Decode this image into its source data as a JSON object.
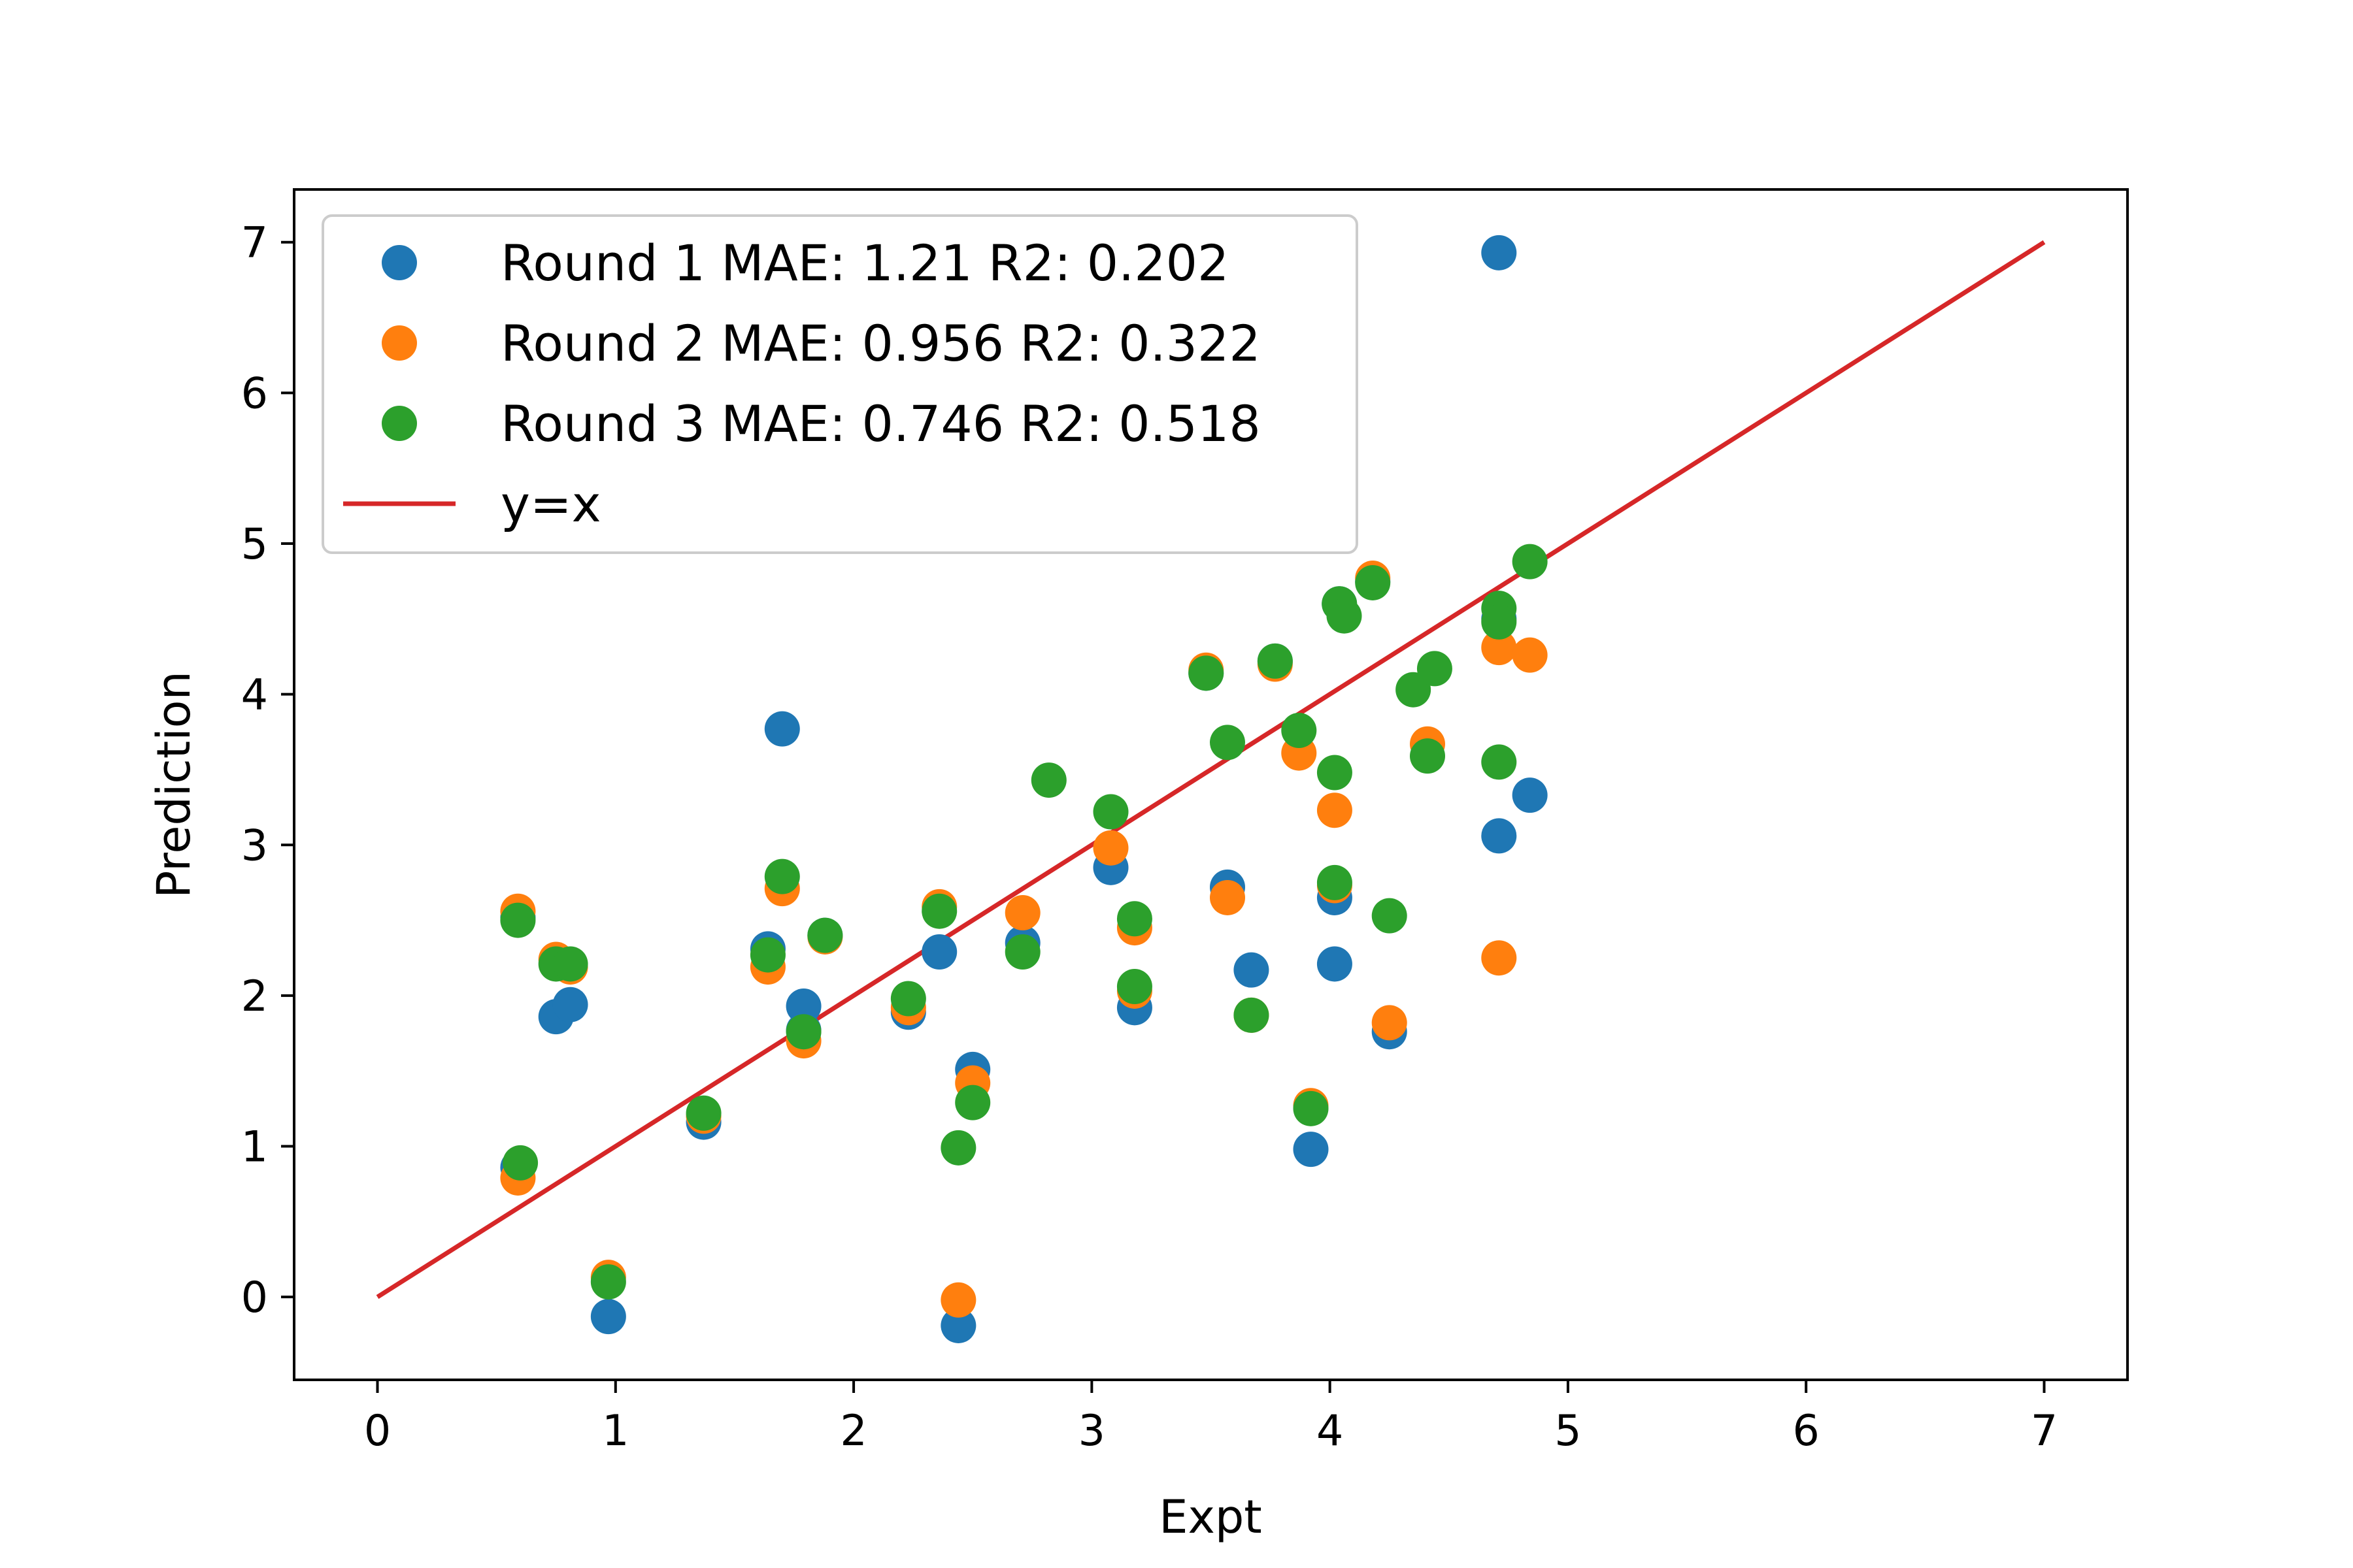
{
  "chart_data": {
    "type": "scatter",
    "title": "",
    "xlabel": "Expt",
    "ylabel": "Prediction",
    "xlim": [
      -0.35,
      7.35
    ],
    "ylim": [
      -0.55,
      7.35
    ],
    "xticks": [
      0,
      1,
      2,
      3,
      4,
      5,
      6,
      7
    ],
    "yticks": [
      0,
      1,
      2,
      3,
      4,
      5,
      6,
      7
    ],
    "grid": false,
    "legend_position": "upper left",
    "series": [
      {
        "name": "Round 1 MAE: 1.21 R2: 0.202",
        "color": "#1f77b4",
        "points": [
          [
            0.59,
            2.52
          ],
          [
            0.59,
            0.86
          ],
          [
            0.75,
            1.86
          ],
          [
            0.81,
            1.94
          ],
          [
            0.97,
            -0.13
          ],
          [
            1.37,
            1.16
          ],
          [
            1.64,
            2.31
          ],
          [
            1.7,
            3.77
          ],
          [
            1.79,
            1.93
          ],
          [
            1.88,
            2.4
          ],
          [
            2.23,
            1.89
          ],
          [
            2.36,
            2.29
          ],
          [
            2.44,
            -0.19
          ],
          [
            2.5,
            1.51
          ],
          [
            2.71,
            2.35
          ],
          [
            3.08,
            2.85
          ],
          [
            3.18,
            1.92
          ],
          [
            3.57,
            2.72
          ],
          [
            3.67,
            2.17
          ],
          [
            3.92,
            0.98
          ],
          [
            4.02,
            2.65
          ],
          [
            4.02,
            2.21
          ],
          [
            4.25,
            1.76
          ],
          [
            4.71,
            6.93
          ],
          [
            4.71,
            3.06
          ],
          [
            4.84,
            3.33
          ],
          [
            1.79,
            1.77
          ],
          [
            3.48,
            4.14
          ],
          [
            3.77,
            4.22
          ],
          [
            4.18,
            4.75
          ],
          [
            4.04,
            4.6
          ],
          [
            4.71,
            4.5
          ]
        ]
      },
      {
        "name": "Round 2 MAE: 0.956 R2: 0.322",
        "color": "#ff7f0e",
        "points": [
          [
            0.59,
            2.56
          ],
          [
            0.59,
            0.79
          ],
          [
            0.75,
            2.24
          ],
          [
            0.81,
            2.19
          ],
          [
            0.97,
            0.13
          ],
          [
            1.37,
            1.2
          ],
          [
            1.64,
            2.19
          ],
          [
            1.7,
            2.71
          ],
          [
            1.79,
            1.7
          ],
          [
            1.88,
            2.39
          ],
          [
            2.23,
            1.92
          ],
          [
            2.36,
            2.59
          ],
          [
            2.44,
            -0.02
          ],
          [
            2.5,
            1.42
          ],
          [
            2.71,
            2.55
          ],
          [
            3.08,
            2.98
          ],
          [
            3.18,
            2.45
          ],
          [
            3.18,
            2.03
          ],
          [
            3.48,
            4.16
          ],
          [
            3.57,
            2.65
          ],
          [
            3.67,
            1.87
          ],
          [
            3.77,
            4.2
          ],
          [
            3.87,
            3.61
          ],
          [
            3.92,
            1.27
          ],
          [
            4.02,
            3.23
          ],
          [
            4.02,
            2.73
          ],
          [
            4.18,
            4.77
          ],
          [
            4.25,
            1.82
          ],
          [
            4.41,
            3.67
          ],
          [
            4.71,
            4.31
          ],
          [
            4.71,
            2.25
          ],
          [
            4.84,
            4.26
          ]
        ]
      },
      {
        "name": "Round 3 MAE: 0.746 R2: 0.518",
        "color": "#2ca02c",
        "points": [
          [
            0.59,
            2.5
          ],
          [
            0.6,
            0.89
          ],
          [
            0.75,
            2.21
          ],
          [
            0.81,
            2.21
          ],
          [
            0.97,
            0.1
          ],
          [
            1.37,
            1.22
          ],
          [
            1.64,
            2.27
          ],
          [
            1.7,
            2.79
          ],
          [
            1.79,
            1.76
          ],
          [
            1.88,
            2.4
          ],
          [
            2.23,
            1.98
          ],
          [
            2.36,
            2.56
          ],
          [
            2.44,
            0.99
          ],
          [
            2.5,
            1.29
          ],
          [
            2.71,
            2.29
          ],
          [
            2.82,
            3.43
          ],
          [
            3.08,
            3.22
          ],
          [
            3.18,
            2.51
          ],
          [
            3.18,
            2.06
          ],
          [
            3.48,
            4.14
          ],
          [
            3.57,
            3.68
          ],
          [
            3.67,
            1.87
          ],
          [
            3.77,
            4.22
          ],
          [
            3.87,
            3.76
          ],
          [
            3.92,
            1.25
          ],
          [
            4.02,
            3.48
          ],
          [
            4.02,
            2.75
          ],
          [
            4.04,
            4.6
          ],
          [
            4.06,
            4.52
          ],
          [
            4.18,
            4.74
          ],
          [
            4.25,
            2.53
          ],
          [
            4.35,
            4.03
          ],
          [
            4.41,
            3.59
          ],
          [
            4.44,
            4.17
          ],
          [
            4.71,
            4.57
          ],
          [
            4.71,
            4.48
          ],
          [
            4.71,
            3.55
          ],
          [
            4.84,
            4.88
          ]
        ]
      }
    ],
    "reference_line": {
      "name": "y=x",
      "color": "#d62728",
      "x": [
        0,
        7
      ],
      "y": [
        0,
        7
      ]
    }
  }
}
